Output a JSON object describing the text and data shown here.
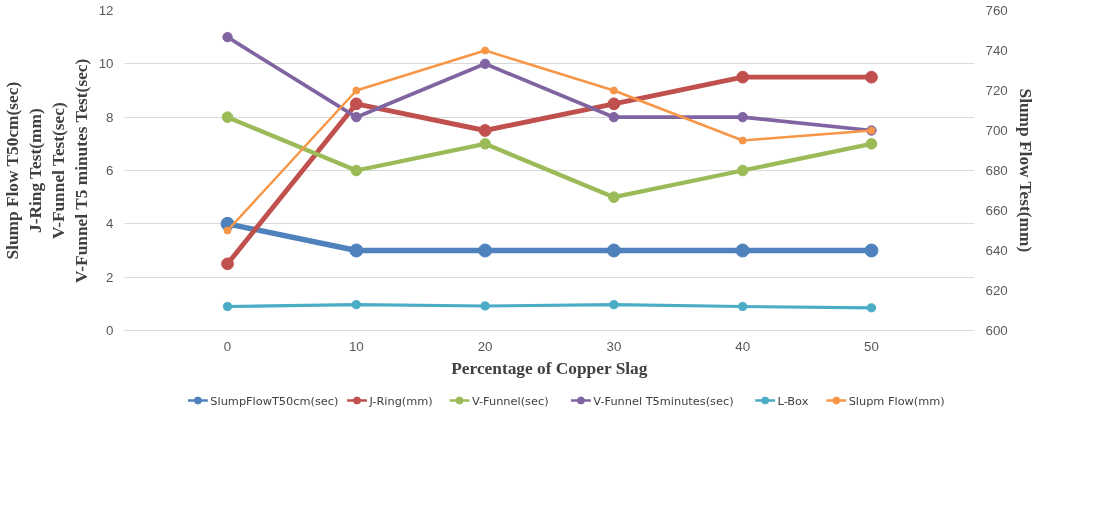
{
  "chart_data": {
    "type": "line",
    "xlabel": "Percentage of Copper Slag",
    "ylabel": "Slump Flow T50cm(sec)\nJ-Ring Test(mm)\nV-Funnel Test(sec)\nV-Funnel T5 minutes Test(sec)",
    "y2label": "Slump Flow Test(mm)",
    "categories": [
      "0",
      "10",
      "20",
      "30",
      "40",
      "50"
    ],
    "ylim": [
      0,
      12
    ],
    "yticks": [
      0,
      2,
      4,
      6,
      8,
      10,
      12
    ],
    "y2lim": [
      600,
      760
    ],
    "y2ticks": [
      600,
      620,
      640,
      660,
      680,
      700,
      720,
      740,
      760
    ],
    "grid": "y",
    "legend": "bottom",
    "marker": "circle",
    "line_style": "solid",
    "series": [
      {
        "name": "SlumpFlowT50cm(sec)",
        "color": "#4f81bd",
        "values": [
          4,
          3,
          3,
          3,
          3,
          3
        ]
      },
      {
        "name": "J-Ring(mm)",
        "color": "#c0504d",
        "values": [
          2.5,
          8.5,
          7.5,
          8.5,
          9.5,
          9.5
        ]
      },
      {
        "name": "V-Funnel(sec)",
        "color": "#9bbb59",
        "values": [
          8,
          6,
          7,
          5,
          6,
          7
        ]
      },
      {
        "name": "V-Funnel T5minutes(sec)",
        "color": "#8064a2",
        "values": [
          11,
          8,
          10,
          8,
          8,
          7.5
        ]
      },
      {
        "name": "L-Box",
        "color": "#4bacc6",
        "values": [
          0.9,
          0.97,
          0.92,
          0.97,
          0.9,
          0.85
        ]
      },
      {
        "name": "Slupm Flow(mm)",
        "color": "#f79646",
        "axis": "y2",
        "values": [
          650,
          720,
          740,
          720,
          695,
          700
        ]
      }
    ]
  }
}
